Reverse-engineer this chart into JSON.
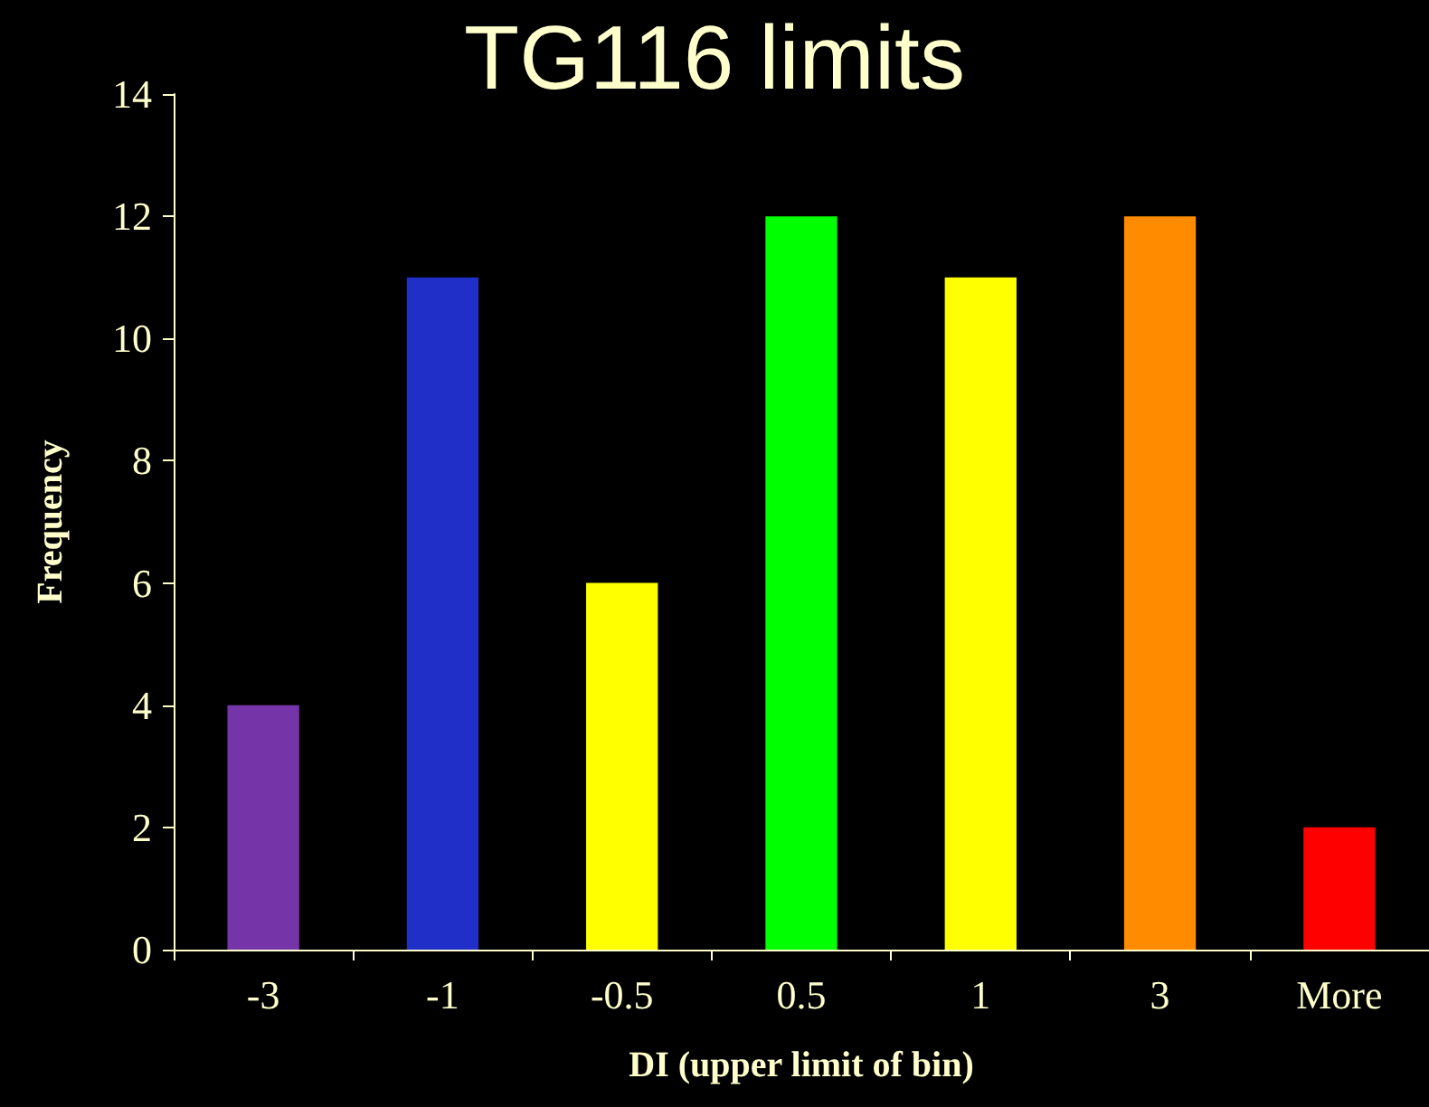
{
  "chart_data": {
    "type": "bar",
    "title": "TG116 limits",
    "xlabel": "DI (upper limit of bin)",
    "ylabel": "Frequency",
    "categories": [
      "-3",
      "-1",
      "-0.5",
      "0.5",
      "1",
      "3",
      "More"
    ],
    "values": [
      4,
      11,
      6,
      12,
      11,
      12,
      2
    ],
    "colors": [
      "#7535a8",
      "#1f2fc8",
      "#ffff00",
      "#00ff00",
      "#ffff00",
      "#ff8c00",
      "#ff0000"
    ],
    "ylim": [
      0,
      14
    ],
    "yticks": [
      0,
      2,
      4,
      6,
      8,
      10,
      12,
      14
    ]
  }
}
